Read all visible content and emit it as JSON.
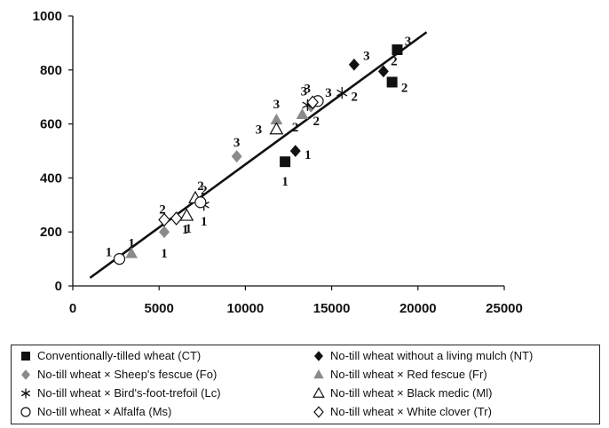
{
  "chart_data": {
    "type": "scatter",
    "title": "",
    "xlabel": "",
    "ylabel": "",
    "xlim": [
      0,
      25000
    ],
    "ylim": [
      0,
      1000
    ],
    "xticks": [
      "0",
      "5000",
      "10000",
      "15000",
      "20000",
      "25000"
    ],
    "yticks": [
      "0",
      "200",
      "400",
      "600",
      "800",
      "1000"
    ],
    "grid": false,
    "legend_position": "bottom",
    "trendline": {
      "from": [
        1000,
        30
      ],
      "to": [
        20500,
        940
      ]
    },
    "series": [
      {
        "name": "Conventionally-tilled wheat (CT)",
        "marker": "square-filled",
        "color": "#111111",
        "points": [
          {
            "x": 12300,
            "y": 460,
            "label": "1"
          },
          {
            "x": 18500,
            "y": 755,
            "label": "2"
          },
          {
            "x": 18800,
            "y": 875,
            "label": "3"
          }
        ]
      },
      {
        "name": "No-till wheat without a living mulch (NT)",
        "marker": "diamond-filled",
        "color": "#111111",
        "points": [
          {
            "x": 12900,
            "y": 500,
            "label": "1"
          },
          {
            "x": 18000,
            "y": 795,
            "label": "2"
          },
          {
            "x": 16300,
            "y": 820,
            "label": "3"
          }
        ]
      },
      {
        "name": "No-till wheat × Sheep's fescue (Fo)",
        "marker": "diamond-gray",
        "color": "#8a8a8a",
        "points": [
          {
            "x": 5300,
            "y": 200,
            "label": "1"
          },
          {
            "x": 13800,
            "y": 665,
            "label": "2"
          },
          {
            "x": 9500,
            "y": 480,
            "label": "3"
          }
        ]
      },
      {
        "name": "No-till wheat × Red fescue (Fr)",
        "marker": "triangle-gray",
        "color": "#8a8a8a",
        "points": [
          {
            "x": 3400,
            "y": 120,
            "label": "1"
          },
          {
            "x": 13300,
            "y": 635,
            "label": "2"
          },
          {
            "x": 11800,
            "y": 615,
            "label": "3"
          }
        ]
      },
      {
        "name": "No-till wheat × Bird's-foot-trefoil (Lc)",
        "marker": "asterisk",
        "color": "#111111",
        "points": [
          {
            "x": 7600,
            "y": 300,
            "label": "1"
          },
          {
            "x": 15600,
            "y": 715,
            "label": "2"
          },
          {
            "x": 13600,
            "y": 670,
            "label": "3"
          }
        ]
      },
      {
        "name": "No-till wheat × Black medic (Ml)",
        "marker": "triangle-open",
        "color": "#111111",
        "points": [
          {
            "x": 6600,
            "y": 260,
            "label": "1"
          },
          {
            "x": 7100,
            "y": 325,
            "label": "2"
          },
          {
            "x": 11800,
            "y": 580,
            "label": "3"
          }
        ]
      },
      {
        "name": "No-till wheat × Alfalfa (Ms)",
        "marker": "circle-open",
        "color": "#111111",
        "points": [
          {
            "x": 2700,
            "y": 100,
            "label": "1"
          },
          {
            "x": 7400,
            "y": 310,
            "label": "2"
          },
          {
            "x": 14200,
            "y": 685,
            "label": "3"
          }
        ]
      },
      {
        "name": "No-till wheat × White clover (Tr)",
        "marker": "diamond-open",
        "color": "#111111",
        "points": [
          {
            "x": 6000,
            "y": 250,
            "label": "1"
          },
          {
            "x": 5300,
            "y": 245,
            "label": "2"
          },
          {
            "x": 13900,
            "y": 680,
            "label": "3"
          }
        ]
      }
    ]
  }
}
